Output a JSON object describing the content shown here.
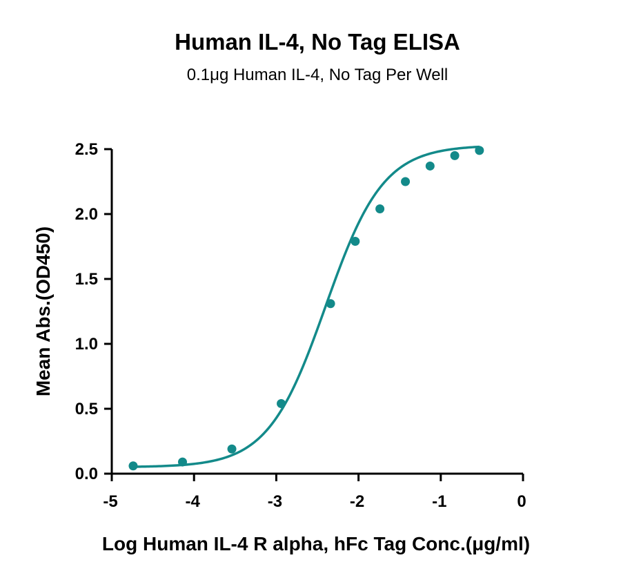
{
  "chart_data": {
    "type": "scatter",
    "title": "Human IL-4, No Tag ELISA",
    "subtitle": "0.1μg Human IL-4, No Tag Per Well",
    "xlabel": "Log Human IL-4 R alpha, hFc Tag Conc.(μg/ml)",
    "ylabel": "Mean Abs.(OD450)",
    "xlim": [
      -5,
      0
    ],
    "ylim": [
      0,
      2.5
    ],
    "x_ticks": [
      -5,
      -4,
      -3,
      -2,
      -1,
      0
    ],
    "x_tick_labels": [
      "-5",
      "-4",
      "-3",
      "-2",
      "-1",
      "0"
    ],
    "y_ticks": [
      0,
      0.5,
      1.0,
      1.5,
      2.0,
      2.5
    ],
    "y_tick_labels": [
      "0.0",
      "0.5",
      "1.0",
      "1.5",
      "2.0",
      "2.5"
    ],
    "grid": false,
    "legend": false,
    "color": "#138a8a",
    "series": [
      {
        "x": [
          -4.74,
          -4.14,
          -3.54,
          -2.94,
          -2.34,
          -2.04,
          -1.74,
          -1.43,
          -1.13,
          -0.83,
          -0.53
        ],
        "y": [
          0.06,
          0.09,
          0.19,
          0.54,
          1.31,
          1.79,
          2.04,
          2.25,
          2.37,
          2.45,
          2.49
        ]
      }
    ],
    "fit_curve": {
      "model": "4PL",
      "bottom": 0.05,
      "top": 2.53,
      "log_ec50": -2.4,
      "hill_slope": 1.24
    }
  }
}
